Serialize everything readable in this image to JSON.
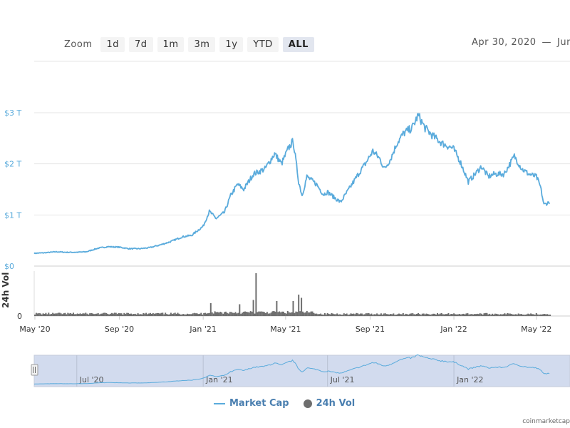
{
  "zoom": {
    "label": "Zoom",
    "buttons": [
      "1d",
      "7d",
      "1m",
      "3m",
      "1y",
      "YTD",
      "ALL"
    ],
    "active": "ALL"
  },
  "date_range": {
    "from": "Apr 30, 2020",
    "dash": "—",
    "to": "Jun"
  },
  "legend": {
    "market_cap": "Market Cap",
    "volume": "24h Vol"
  },
  "credit": "coinmarketcap",
  "colors": {
    "line": "#5aabdc",
    "volume": "#6e6e6e",
    "navigator_fill": "#d2dbee",
    "axis_text": "#5aabdc",
    "grid": "#e6e6e6"
  },
  "chart_data": {
    "type": "line",
    "x_start": "2020-04-30",
    "x_end": "2022-06",
    "y_ticks": [
      "$0",
      "$1 T",
      "$2 T",
      "$3 T"
    ],
    "y_tick_values": [
      0,
      1,
      2,
      3
    ],
    "ylim": [
      0,
      3.2
    ],
    "x_tick_labels": [
      "May '20",
      "Sep '20",
      "Jan '21",
      "May '21",
      "Sep '21",
      "Jan '22",
      "May '22"
    ],
    "x_tick_dates": [
      "2020-05-01",
      "2020-09-01",
      "2021-01-01",
      "2021-05-01",
      "2021-09-01",
      "2022-01-01",
      "2022-05-01"
    ],
    "navigator_tick_labels": [
      "Jul '20",
      "Jan '21",
      "Jul '21",
      "Jan '22"
    ],
    "navigator_tick_dates": [
      "2020-07-01",
      "2021-01-01",
      "2021-07-01",
      "2022-01-01"
    ],
    "series": [
      {
        "name": "Market Cap",
        "unit": "T USD",
        "points": [
          [
            "2020-05-01",
            0.25
          ],
          [
            "2020-05-15",
            0.26
          ],
          [
            "2020-06-01",
            0.28
          ],
          [
            "2020-06-15",
            0.27
          ],
          [
            "2020-07-01",
            0.27
          ],
          [
            "2020-07-15",
            0.28
          ],
          [
            "2020-08-01",
            0.35
          ],
          [
            "2020-08-15",
            0.38
          ],
          [
            "2020-09-01",
            0.37
          ],
          [
            "2020-09-15",
            0.34
          ],
          [
            "2020-10-01",
            0.34
          ],
          [
            "2020-10-15",
            0.36
          ],
          [
            "2020-11-01",
            0.42
          ],
          [
            "2020-11-15",
            0.48
          ],
          [
            "2020-12-01",
            0.57
          ],
          [
            "2020-12-15",
            0.6
          ],
          [
            "2021-01-01",
            0.78
          ],
          [
            "2021-01-10",
            1.07
          ],
          [
            "2021-01-20",
            0.93
          ],
          [
            "2021-02-01",
            1.05
          ],
          [
            "2021-02-10",
            1.38
          ],
          [
            "2021-02-20",
            1.6
          ],
          [
            "2021-03-01",
            1.5
          ],
          [
            "2021-03-15",
            1.8
          ],
          [
            "2021-04-01",
            1.9
          ],
          [
            "2021-04-15",
            2.2
          ],
          [
            "2021-04-25",
            2.0
          ],
          [
            "2021-05-05",
            2.3
          ],
          [
            "2021-05-12",
            2.45
          ],
          [
            "2021-05-20",
            1.65
          ],
          [
            "2021-05-25",
            1.38
          ],
          [
            "2021-06-01",
            1.75
          ],
          [
            "2021-06-15",
            1.6
          ],
          [
            "2021-06-25",
            1.4
          ],
          [
            "2021-07-01",
            1.45
          ],
          [
            "2021-07-10",
            1.35
          ],
          [
            "2021-07-20",
            1.25
          ],
          [
            "2021-08-01",
            1.5
          ],
          [
            "2021-08-15",
            1.8
          ],
          [
            "2021-08-25",
            2.0
          ],
          [
            "2021-09-05",
            2.25
          ],
          [
            "2021-09-15",
            2.1
          ],
          [
            "2021-09-22",
            1.9
          ],
          [
            "2021-10-01",
            2.1
          ],
          [
            "2021-10-10",
            2.4
          ],
          [
            "2021-10-20",
            2.6
          ],
          [
            "2021-11-01",
            2.7
          ],
          [
            "2021-11-10",
            2.95
          ],
          [
            "2021-11-20",
            2.7
          ],
          [
            "2021-12-01",
            2.55
          ],
          [
            "2021-12-15",
            2.4
          ],
          [
            "2021-12-31",
            2.3
          ],
          [
            "2022-01-10",
            2.05
          ],
          [
            "2022-01-22",
            1.65
          ],
          [
            "2022-02-01",
            1.8
          ],
          [
            "2022-02-10",
            1.95
          ],
          [
            "2022-02-20",
            1.75
          ],
          [
            "2022-03-01",
            1.8
          ],
          [
            "2022-03-15",
            1.8
          ],
          [
            "2022-03-30",
            2.15
          ],
          [
            "2022-04-10",
            1.9
          ],
          [
            "2022-04-20",
            1.8
          ],
          [
            "2022-05-01",
            1.75
          ],
          [
            "2022-05-07",
            1.55
          ],
          [
            "2022-05-12",
            1.2
          ],
          [
            "2022-05-20",
            1.25
          ]
        ]
      },
      {
        "name": "24h Vol",
        "unit": "relative",
        "spikes": [
          [
            "2021-01-11",
            0.6
          ],
          [
            "2021-02-23",
            0.55
          ],
          [
            "2021-03-15",
            0.75
          ],
          [
            "2021-03-19",
            2.0
          ],
          [
            "2021-04-18",
            0.7
          ],
          [
            "2021-05-12",
            0.7
          ],
          [
            "2021-05-19",
            1.0
          ],
          [
            "2021-05-23",
            0.85
          ]
        ]
      }
    ]
  }
}
